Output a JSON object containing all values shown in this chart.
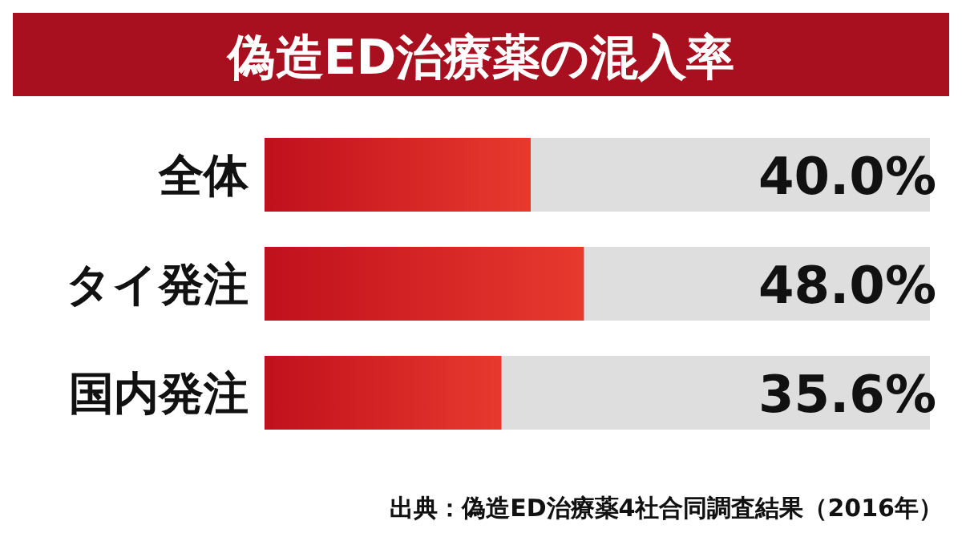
{
  "chart_data": {
    "type": "bar",
    "orientation": "horizontal",
    "title": "偽造ED治療薬の混入率",
    "categories": [
      "全体",
      "タイ発注",
      "国内発注"
    ],
    "values": [
      40.0,
      48.0,
      35.6
    ],
    "value_labels": [
      "40.0%",
      "48.0%",
      "35.6%"
    ],
    "color": "#e8392e",
    "xlim": [
      0,
      100
    ],
    "tick_labels": "y",
    "annotations": [
      "出典：偽造ED治療薬4社合同調査結果（2016年）"
    ]
  }
}
